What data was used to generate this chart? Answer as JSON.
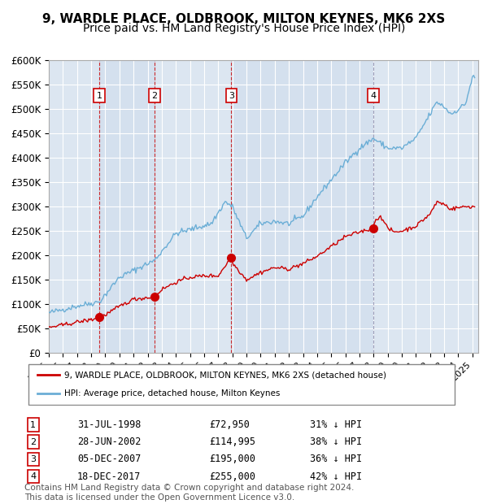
{
  "title": "9, WARDLE PLACE, OLDBROOK, MILTON KEYNES, MK6 2XS",
  "subtitle": "Price paid vs. HM Land Registry's House Price Index (HPI)",
  "xlabel": "",
  "ylabel": "",
  "ylim": [
    0,
    600000
  ],
  "yticks": [
    0,
    50000,
    100000,
    150000,
    200000,
    250000,
    300000,
    350000,
    400000,
    450000,
    500000,
    550000,
    600000
  ],
  "ytick_labels": [
    "£0",
    "£50K",
    "£100K",
    "£150K",
    "£200K",
    "£250K",
    "£300K",
    "£350K",
    "£400K",
    "£450K",
    "£500K",
    "£550K",
    "£600K"
  ],
  "background_color": "#ffffff",
  "plot_bg_color": "#dce6f1",
  "grid_color": "#ffffff",
  "hpi_color": "#6baed6",
  "price_color": "#cc0000",
  "sale_marker_color": "#cc0000",
  "sale_dates": [
    "1998-07-31",
    "2002-06-28",
    "2007-12-05",
    "2017-12-18"
  ],
  "sale_prices": [
    72950,
    114995,
    195000,
    255000
  ],
  "sale_labels": [
    "1",
    "2",
    "3",
    "4"
  ],
  "sale_label_pct": [
    "31% ↓ HPI",
    "38% ↓ HPI",
    "36% ↓ HPI",
    "42% ↓ HPI"
  ],
  "sale_label_dates_text": [
    "31-JUL-1998",
    "28-JUN-2002",
    "05-DEC-2007",
    "18-DEC-2017"
  ],
  "sale_label_prices_text": [
    "£72,950",
    "£114,995",
    "£195,000",
    "£255,000"
  ],
  "vline_colors_dashed": [
    "#cc0000",
    "#cc0000",
    "#cc0000",
    "#8888aa"
  ],
  "legend_price_label": "9, WARDLE PLACE, OLDBROOK, MILTON KEYNES, MK6 2XS (detached house)",
  "legend_hpi_label": "HPI: Average price, detached house, Milton Keynes",
  "footer": "Contains HM Land Registry data © Crown copyright and database right 2024.\nThis data is licensed under the Open Government Licence v3.0.",
  "title_fontsize": 11,
  "subtitle_fontsize": 10,
  "tick_fontsize": 8.5,
  "footer_fontsize": 7.5
}
